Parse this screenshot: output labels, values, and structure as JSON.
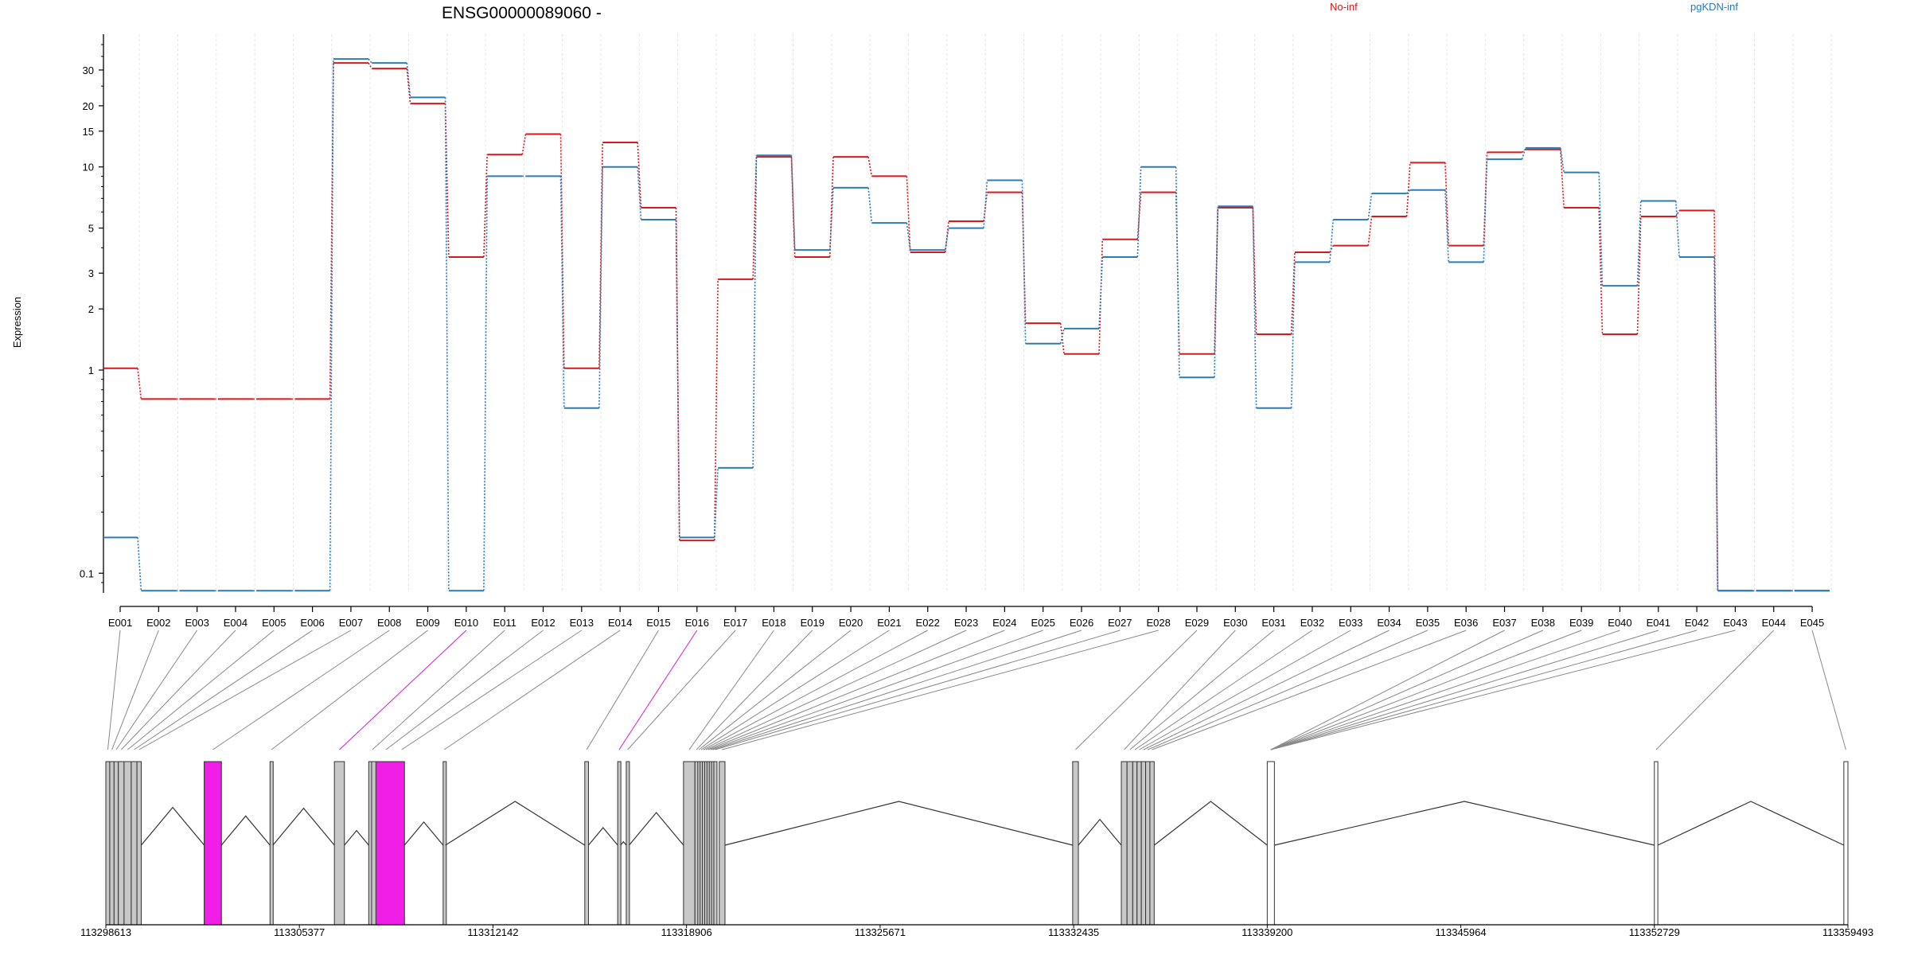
{
  "chart_data": {
    "type": "line",
    "title": "ENSG00000089060 -",
    "xlabel": "",
    "ylabel": "Expression",
    "y_scale": "log",
    "ylim": [
      0.08,
      45
    ],
    "y_ticks": [
      {
        "value": 0.1,
        "label": "0.1"
      },
      {
        "value": 1,
        "label": "1"
      },
      {
        "value": 2,
        "label": "2"
      },
      {
        "value": 3,
        "label": "3"
      },
      {
        "value": 5,
        "label": "5"
      },
      {
        "value": 10,
        "label": "10"
      },
      {
        "value": 15,
        "label": "15"
      },
      {
        "value": 20,
        "label": "20"
      },
      {
        "value": 30,
        "label": "30"
      }
    ],
    "legend_position": "top-right",
    "grid": "vertical dashed",
    "categories": [
      "E001",
      "E002",
      "E003",
      "E004",
      "E005",
      "E006",
      "E007",
      "E008",
      "E009",
      "E010",
      "E011",
      "E012",
      "E013",
      "E014",
      "E015",
      "E016",
      "E017",
      "E018",
      "E019",
      "E020",
      "E021",
      "E022",
      "E023",
      "E024",
      "E025",
      "E026",
      "E027",
      "E028",
      "E029",
      "E030",
      "E031",
      "E032",
      "E033",
      "E034",
      "E035",
      "E036",
      "E037",
      "E038",
      "E039",
      "E040",
      "E041",
      "E042",
      "E043",
      "E044",
      "E045"
    ],
    "series": [
      {
        "name": "No-inf",
        "color": "#d7191c",
        "values": [
          1.02,
          0.72,
          0.72,
          0.72,
          0.72,
          0.72,
          32.5,
          30.5,
          20.5,
          3.6,
          11.5,
          14.5,
          1.02,
          13.2,
          6.3,
          0.145,
          2.8,
          11.2,
          3.6,
          11.2,
          9.0,
          3.8,
          5.4,
          7.5,
          1.7,
          1.2,
          4.4,
          7.5,
          1.2,
          6.3,
          1.5,
          3.8,
          4.1,
          5.7,
          10.5,
          4.1,
          11.8,
          12.2,
          6.3,
          1.5,
          5.7,
          6.1,
          0.082,
          0.082,
          0.082
        ]
      },
      {
        "name": "pgKDN-inf",
        "color": "#2c7bb6",
        "values": [
          0.15,
          0.082,
          0.082,
          0.082,
          0.082,
          0.082,
          34.0,
          32.5,
          22.0,
          0.082,
          9.0,
          9.0,
          0.65,
          10.0,
          5.5,
          0.15,
          0.33,
          11.4,
          3.9,
          7.9,
          5.3,
          3.9,
          5.0,
          8.6,
          1.35,
          1.6,
          3.6,
          10.0,
          0.92,
          6.4,
          0.65,
          3.4,
          5.5,
          7.4,
          7.7,
          3.4,
          10.9,
          12.4,
          9.4,
          2.6,
          6.8,
          3.6,
          0.082,
          0.082,
          0.082
        ]
      }
    ],
    "gene_model": {
      "coordinate_ticks": [
        "113298613",
        "113305377",
        "113312142",
        "113318906",
        "113325671",
        "113332435",
        "113339200",
        "113345964",
        "113352729",
        "113359493"
      ],
      "exon_fill": {
        "default": "#c8c8c8",
        "highlight": "#f01ee6",
        "open": "#ffffff"
      },
      "highlighted_exons": [
        "E010",
        "E016"
      ]
    }
  }
}
